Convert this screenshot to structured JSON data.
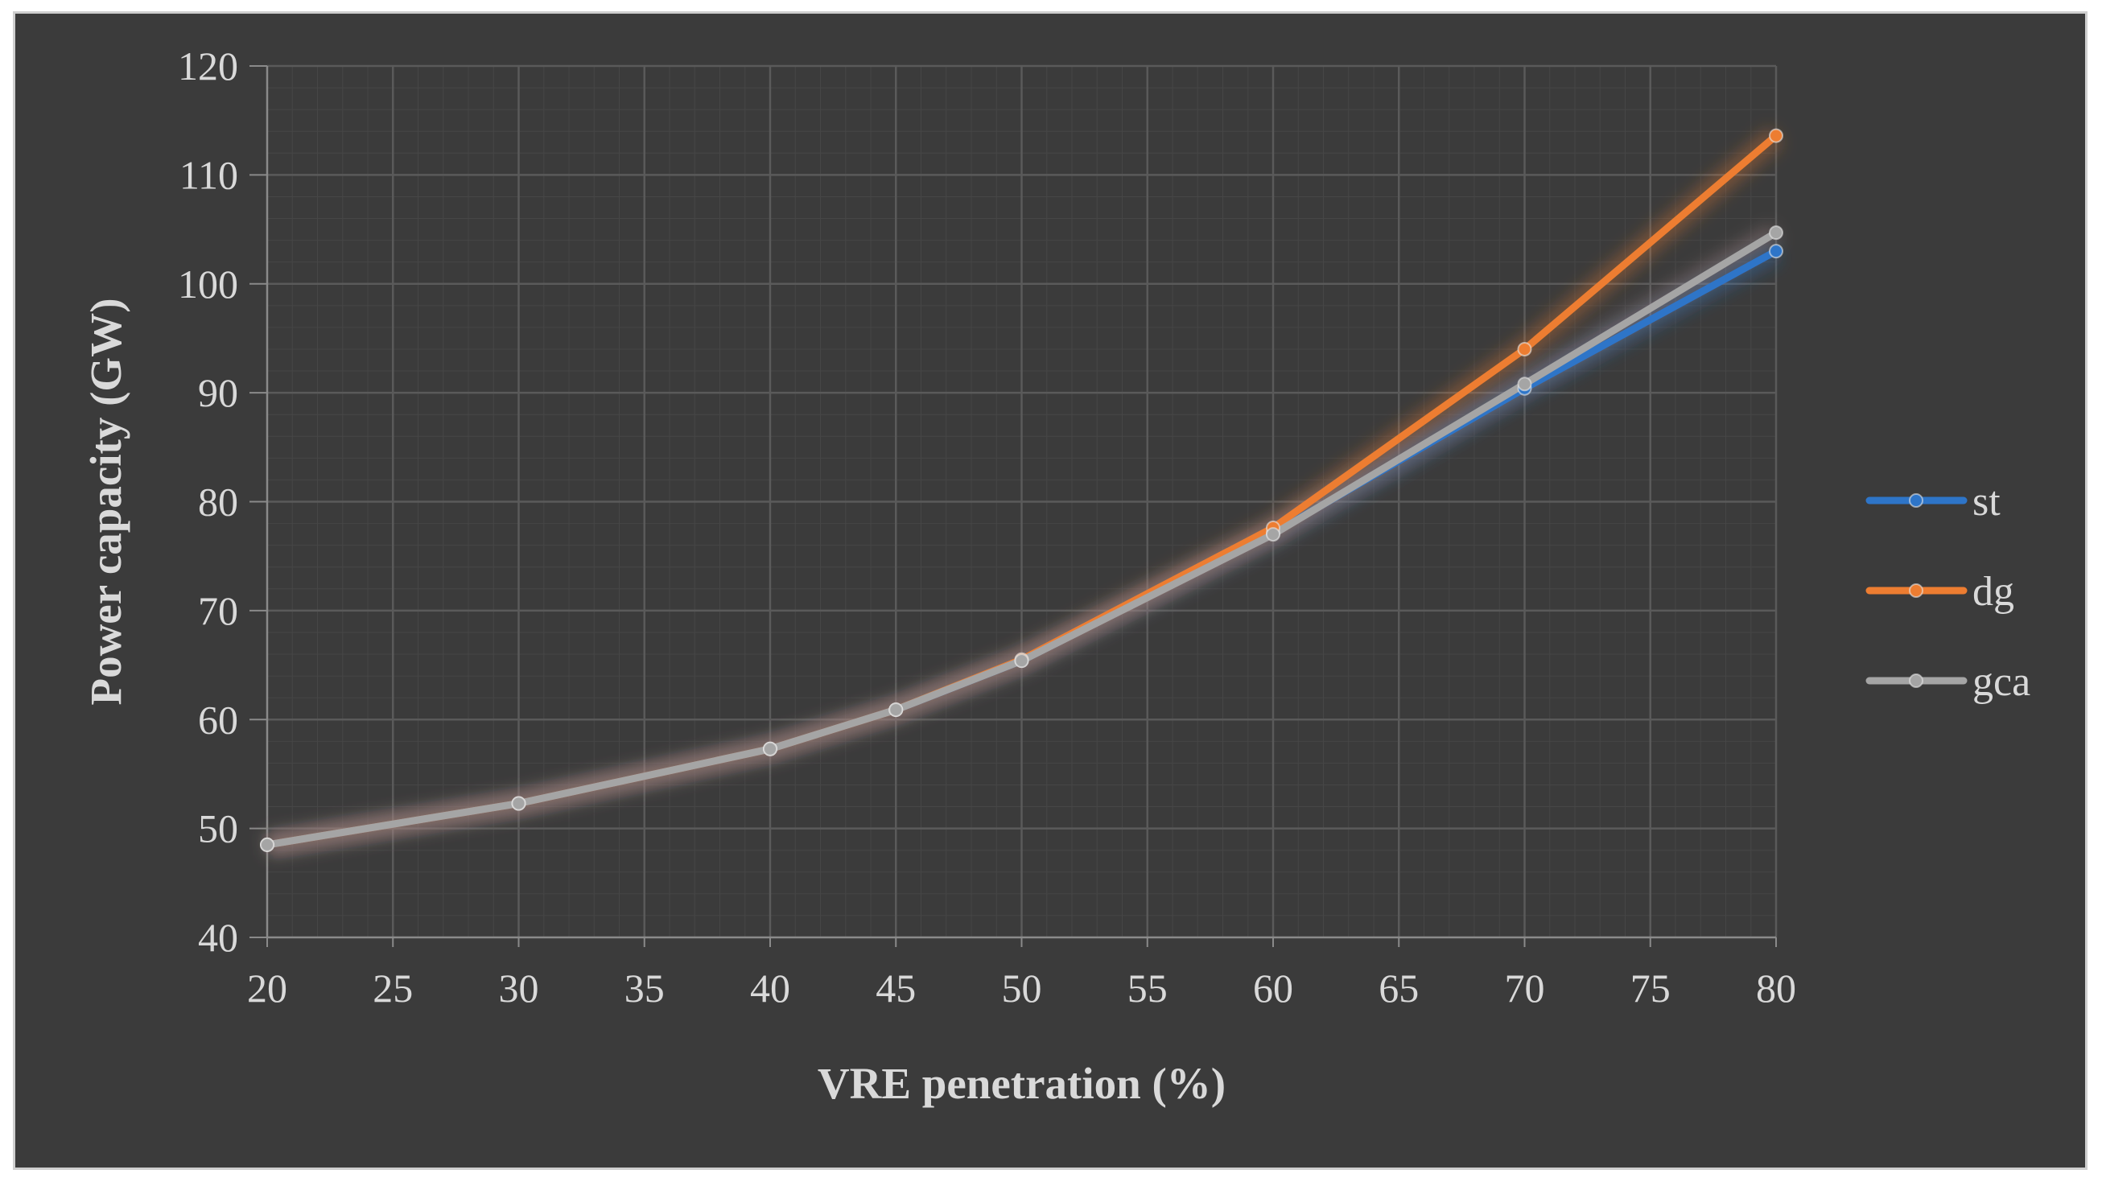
{
  "chart_data": {
    "type": "line",
    "title": "",
    "xlabel": "VRE penetration (%)",
    "ylabel": "Power capacity (GW)",
    "xlim": [
      20,
      80
    ],
    "ylim": [
      40,
      120
    ],
    "x_ticks": [
      20,
      25,
      30,
      35,
      40,
      45,
      50,
      55,
      60,
      65,
      70,
      75,
      80
    ],
    "y_ticks": [
      40,
      50,
      60,
      70,
      80,
      90,
      100,
      110,
      120
    ],
    "grid": true,
    "legend_position": "right",
    "series": [
      {
        "name": "st",
        "color": "#2e75c8",
        "x": [
          20,
          30,
          40,
          45,
          50,
          60,
          70,
          80
        ],
        "values": [
          48.5,
          52.3,
          57.3,
          60.9,
          65.4,
          77.1,
          90.4,
          103.0
        ]
      },
      {
        "name": "dg",
        "color": "#ed7d31",
        "x": [
          20,
          30,
          40,
          45,
          50,
          60,
          70,
          80
        ],
        "values": [
          48.5,
          52.3,
          57.3,
          60.9,
          65.5,
          77.6,
          94.0,
          113.6
        ]
      },
      {
        "name": "gca",
        "color": "#a5a5a5",
        "x": [
          20,
          30,
          40,
          45,
          50,
          60,
          70,
          80
        ],
        "values": [
          48.5,
          52.3,
          57.3,
          60.9,
          65.4,
          77.0,
          90.8,
          104.7
        ]
      }
    ]
  }
}
